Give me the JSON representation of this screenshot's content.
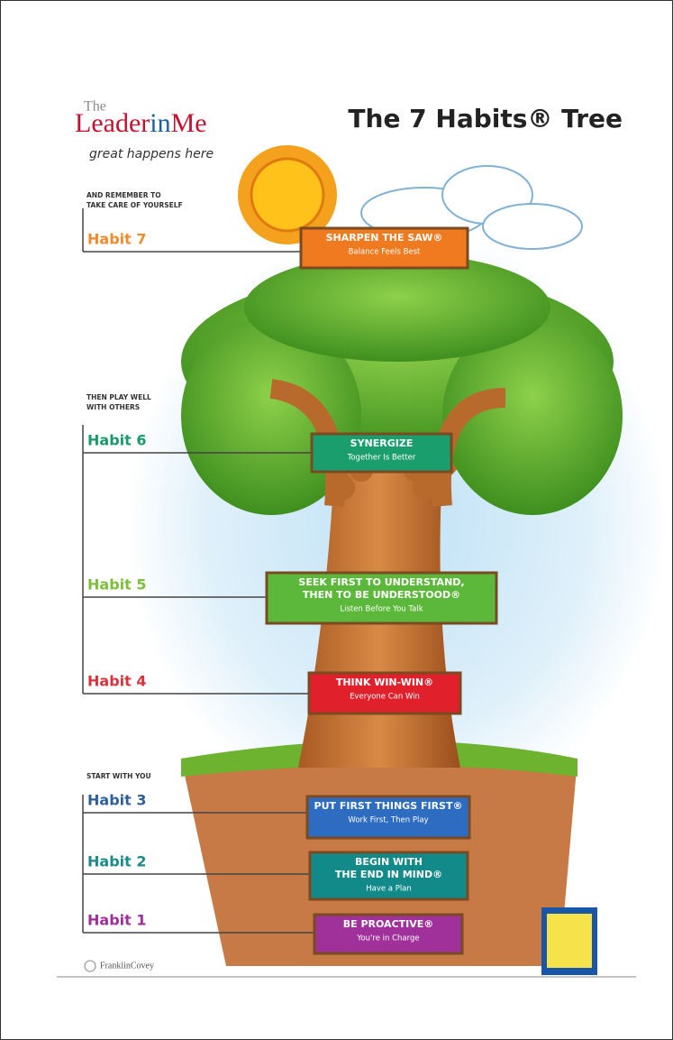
{
  "header": {
    "logo_the": "The",
    "logo_leader": "Leader",
    "logo_in": "in",
    "logo_me": "Me",
    "tagline": "great happens here",
    "title": "The 7 Habits® Tree"
  },
  "notes": [
    [
      "AND REMEMBER TO",
      "TAKE CARE OF YOURSELF"
    ],
    [
      "THEN PLAY WELL",
      "WITH OTHERS"
    ],
    [
      "START WITH YOU"
    ]
  ],
  "habits": [
    {
      "label": "Habit 7",
      "name": [
        "SHARPEN THE SAW®"
      ],
      "motto": "Balance Feels Best"
    },
    {
      "label": "Habit 6",
      "name": [
        "SYNERGIZE"
      ],
      "motto": "Together Is Better"
    },
    {
      "label": "Habit 5",
      "name": [
        "SEEK FIRST TO UNDERSTAND,",
        "THEN TO BE UNDERSTOOD®"
      ],
      "motto": "Listen Before You Talk"
    },
    {
      "label": "Habit 4",
      "name": [
        "THINK WIN-WIN®"
      ],
      "motto": "Everyone Can Win"
    },
    {
      "label": "Habit 3",
      "name": [
        "PUT FIRST THINGS FIRST®"
      ],
      "motto": "Work First, Then Play"
    },
    {
      "label": "Habit 2",
      "name": [
        "BEGIN WITH",
        "THE END IN MIND®"
      ],
      "motto": "Have a Plan"
    },
    {
      "label": "Habit 1",
      "name": [
        "BE PROACTIVE®"
      ],
      "motto": "You're in Charge"
    }
  ],
  "footer": {
    "brand": "FranklinCovey"
  }
}
